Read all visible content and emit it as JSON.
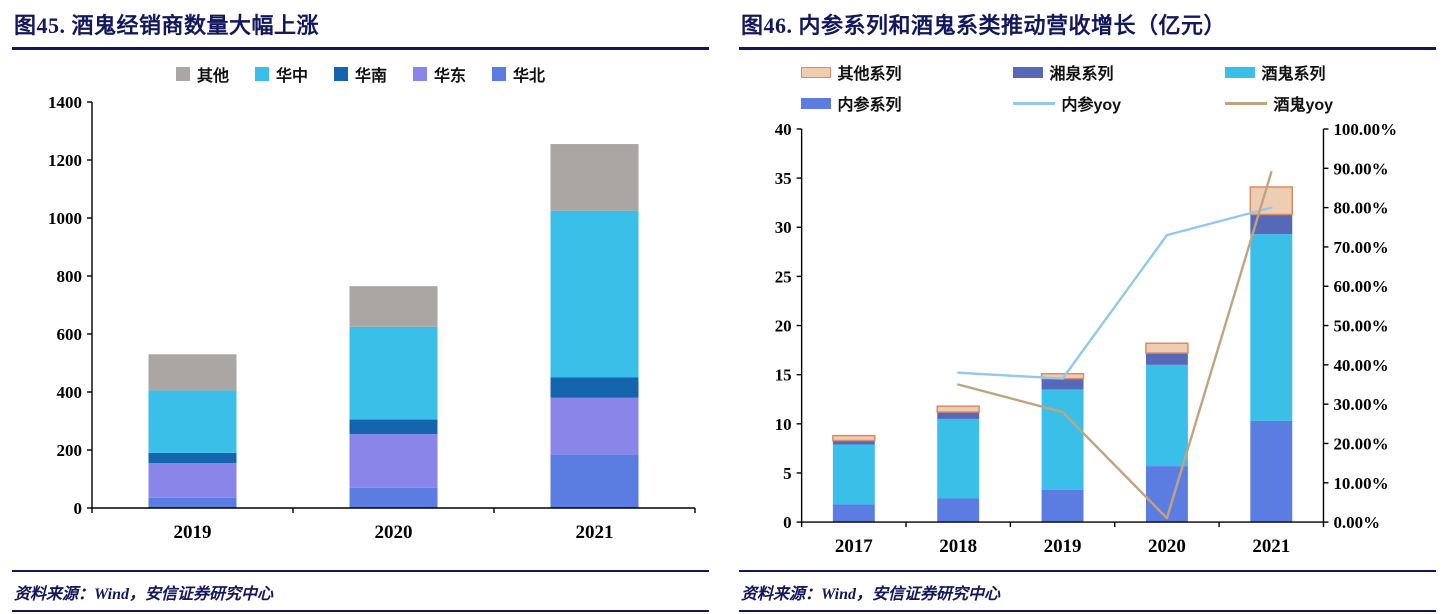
{
  "figures": [
    {
      "title": "图45. 酒鬼经销商数量大幅上涨",
      "source": "资料来源：Wind，安信证券研究中心",
      "legend": [
        {
          "label": "其他",
          "swatch": "square",
          "color": "#aaa6a3"
        },
        {
          "label": "华中",
          "swatch": "square",
          "color": "#39bfe8"
        },
        {
          "label": "华南",
          "swatch": "square",
          "color": "#1565ae"
        },
        {
          "label": "华东",
          "swatch": "square",
          "color": "#8a85e8"
        },
        {
          "label": "华北",
          "swatch": "square",
          "color": "#5b7de1"
        }
      ]
    },
    {
      "title": "图46. 内参系列和酒鬼系类推动营收增长（亿元）",
      "source": "资料来源：Wind，安信证券研究中心",
      "legend": [
        {
          "label": "其他系列",
          "swatch": "bar",
          "color": "#efcdb2",
          "border": "#d98b66"
        },
        {
          "label": "湘泉系列",
          "swatch": "bar",
          "color": "#5569b8"
        },
        {
          "label": "酒鬼系列",
          "swatch": "bar",
          "color": "#39bfe8"
        },
        {
          "label": "内参系列",
          "swatch": "bar",
          "color": "#5b7de1"
        },
        {
          "label": "内参yoy",
          "swatch": "line",
          "color": "#92c8ea"
        },
        {
          "label": "酒鬼yoy",
          "swatch": "line",
          "color": "#c3a37e"
        }
      ]
    }
  ],
  "chart_data": [
    {
      "type": "bar",
      "stacked": true,
      "title": "图45. 酒鬼经销商数量大幅上涨",
      "categories": [
        "2019",
        "2020",
        "2021"
      ],
      "series": [
        {
          "name": "华北",
          "color": "#5b7de1",
          "values": [
            35,
            70,
            185
          ]
        },
        {
          "name": "华东",
          "color": "#8a85e8",
          "values": [
            120,
            185,
            195
          ]
        },
        {
          "name": "华南",
          "color": "#1565ae",
          "values": [
            35,
            50,
            70
          ]
        },
        {
          "name": "华中",
          "color": "#39bfe8",
          "values": [
            215,
            320,
            575
          ]
        },
        {
          "name": "其他",
          "color": "#aaa6a3",
          "values": [
            125,
            140,
            230
          ]
        }
      ],
      "xlabel": "",
      "ylabel": "",
      "ylim": [
        0,
        1400
      ],
      "ytick_step": 200,
      "grid": false,
      "legend_position": "top",
      "legend_order": [
        "其他",
        "华中",
        "华南",
        "华东",
        "华北"
      ]
    },
    {
      "type": "combo-bar-line",
      "stacked": true,
      "title": "图46. 内参系列和酒鬼系类推动营收增长（亿元）",
      "categories": [
        "2017",
        "2018",
        "2019",
        "2020",
        "2021"
      ],
      "series": [
        {
          "name": "内参系列",
          "kind": "bar",
          "color": "#5b7de1",
          "values": [
            1.8,
            2.4,
            3.3,
            5.7,
            10.3
          ]
        },
        {
          "name": "酒鬼系列",
          "kind": "bar",
          "color": "#39bfe8",
          "values": [
            6.1,
            8.1,
            10.2,
            10.3,
            19.0
          ]
        },
        {
          "name": "湘泉系列",
          "kind": "bar",
          "color": "#5569b8",
          "values": [
            0.4,
            0.7,
            1.1,
            1.2,
            2.0
          ]
        },
        {
          "name": "其他系列",
          "kind": "bar",
          "color": "#efcdb2",
          "border": "#d98b66",
          "values": [
            0.5,
            0.6,
            0.5,
            1.0,
            2.8
          ]
        },
        {
          "name": "内参yoy",
          "kind": "line",
          "axis": "right",
          "color": "#92c8ea",
          "values": [
            null,
            38,
            36.5,
            73,
            80
          ]
        },
        {
          "name": "酒鬼yoy",
          "kind": "line",
          "axis": "right",
          "color": "#c3a37e",
          "values": [
            null,
            35,
            28,
            1,
            89
          ]
        }
      ],
      "xlabel": "",
      "ylabel_left": "亿元",
      "ylim_left": [
        0,
        40
      ],
      "ytick_step_left": 5,
      "ylim_right_percent": [
        0,
        100
      ],
      "ytick_step_right_percent": 10,
      "right_tick_format": "percent2",
      "grid": false,
      "legend_position": "top"
    }
  ]
}
